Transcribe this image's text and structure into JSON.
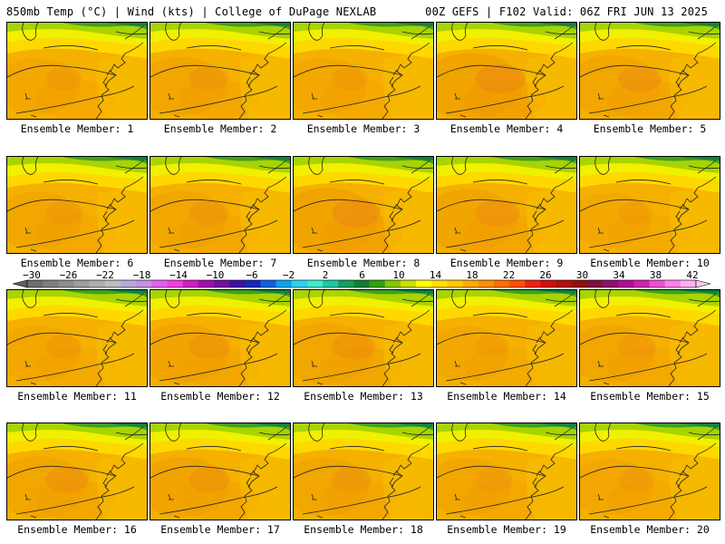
{
  "header": {
    "left_title": "850mb Temp (°C) | Wind (kts) | College of DuPage NEXLAB",
    "right_title": "00Z GEFS | F102 Valid: 06Z FRI JUN 13 2025"
  },
  "panels": [
    {
      "label": "Ensemble Member: 1",
      "warmth": 0.35
    },
    {
      "label": "Ensemble Member: 2",
      "warmth": 0.45
    },
    {
      "label": "Ensemble Member: 3",
      "warmth": 0.35
    },
    {
      "label": "Ensemble Member: 4",
      "warmth": 0.75
    },
    {
      "label": "Ensemble Member: 5",
      "warmth": 0.55
    },
    {
      "label": "Ensemble Member: 6",
      "warmth": 0.4
    },
    {
      "label": "Ensemble Member: 7",
      "warmth": 0.45
    },
    {
      "label": "Ensemble Member: 8",
      "warmth": 0.7
    },
    {
      "label": "Ensemble Member: 9",
      "warmth": 0.6
    },
    {
      "label": "Ensemble Member: 10",
      "warmth": 0.3
    },
    {
      "label": "Ensemble Member: 11",
      "warmth": 0.35
    },
    {
      "label": "Ensemble Member: 12",
      "warmth": 0.5
    },
    {
      "label": "Ensemble Member: 13",
      "warmth": 0.55
    },
    {
      "label": "Ensemble Member: 14",
      "warmth": 0.3
    },
    {
      "label": "Ensemble Member: 15",
      "warmth": 0.4
    },
    {
      "label": "Ensemble Member: 16",
      "warmth": 0.55
    },
    {
      "label": "Ensemble Member: 17",
      "warmth": 0.5
    },
    {
      "label": "Ensemble Member: 18",
      "warmth": 0.45
    },
    {
      "label": "Ensemble Member: 19",
      "warmth": 0.4
    },
    {
      "label": "Ensemble Member: 20",
      "warmth": 0.35
    }
  ],
  "colorbar": {
    "tick_labels": [
      "−30",
      "−26",
      "−22",
      "−18",
      "−14",
      "−10",
      "−6",
      "−2",
      "2",
      "6",
      "10",
      "14",
      "18",
      "22",
      "26",
      "30",
      "34",
      "38",
      "42"
    ],
    "colors": [
      "#6e6e6e",
      "#7e7e7e",
      "#8e8e8e",
      "#9e9e9e",
      "#aeaeae",
      "#bebebe",
      "#b8a8d8",
      "#c890e0",
      "#e060f0",
      "#f040e0",
      "#d020c0",
      "#a010b0",
      "#7010a0",
      "#4010a0",
      "#1828b8",
      "#1060e0",
      "#10a0f0",
      "#30d0f0",
      "#40e8d0",
      "#20c8a0",
      "#10a060",
      "#108030",
      "#30a010",
      "#80c800",
      "#c8e000",
      "#ffff00",
      "#ffe000",
      "#ffc800",
      "#ffaa00",
      "#ff9000",
      "#ff7000",
      "#ff5000",
      "#f02010",
      "#d01010",
      "#b01010",
      "#901010",
      "#801040",
      "#901070",
      "#b01090",
      "#d020b0",
      "#f050d0",
      "#ff80e8",
      "#ffb0f0"
    ]
  }
}
